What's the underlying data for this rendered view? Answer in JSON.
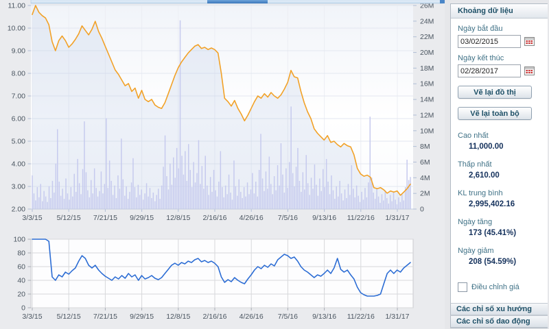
{
  "colors": {
    "price_line": "#f2a126",
    "price_area": "rgba(185,200,228,0.25)",
    "volume_bar": "#c6caee",
    "oscillator_line": "#2b6cd4",
    "grid_main": "#e3e7f0",
    "grid_osc": "#d7d8db",
    "axis_text": "#4a5560",
    "scrollbar_thumb": "#4a86c8",
    "accent_text": "#1d4f66"
  },
  "chart_data": [
    {
      "type": "line",
      "name": "price-volume-chart",
      "x_tick_labels": [
        "3/3/15",
        "5/12/15",
        "7/21/15",
        "9/29/15",
        "12/8/15",
        "2/16/16",
        "4/26/16",
        "7/5/16",
        "9/13/16",
        "11/22/16",
        "1/31/17"
      ],
      "left_axis": {
        "min": 2,
        "max": 11,
        "step": 1,
        "labels": [
          "11.00",
          "10.00",
          "9.00",
          "8.00",
          "7.00",
          "6.00",
          "5.00",
          "4.00",
          "3.00",
          "2.00"
        ]
      },
      "right_axis": {
        "min": 0,
        "max": 26,
        "step": 2,
        "unit": "M",
        "labels": [
          "26M",
          "24M",
          "22M",
          "20M",
          "18M",
          "16M",
          "14M",
          "12M",
          "10M",
          "8M",
          "6M",
          "4M",
          "2M",
          "0"
        ]
      },
      "series": [
        {
          "name": "price",
          "type": "line",
          "color": "#f2a126",
          "values": [
            10.6,
            11.0,
            10.7,
            10.55,
            10.45,
            10.15,
            9.4,
            9.0,
            9.45,
            9.65,
            9.45,
            9.15,
            9.3,
            9.5,
            9.75,
            10.1,
            9.9,
            9.7,
            9.95,
            10.3,
            9.85,
            9.55,
            9.2,
            8.85,
            8.5,
            8.15,
            7.95,
            7.7,
            7.45,
            7.55,
            7.2,
            7.35,
            6.9,
            7.25,
            6.85,
            6.75,
            6.85,
            6.6,
            6.5,
            6.45,
            6.7,
            7.1,
            7.5,
            7.9,
            8.25,
            8.5,
            8.7,
            8.9,
            9.05,
            9.2,
            9.27,
            9.1,
            9.15,
            9.05,
            9.12,
            9.05,
            8.9,
            8.0,
            6.9,
            6.75,
            6.55,
            6.8,
            6.45,
            6.2,
            5.9,
            6.15,
            6.45,
            6.75,
            7.0,
            6.9,
            7.1,
            6.95,
            7.15,
            7.0,
            6.9,
            7.05,
            7.3,
            7.6,
            8.13,
            7.85,
            7.8,
            7.2,
            6.7,
            6.3,
            6.0,
            5.55,
            5.35,
            5.2,
            5.05,
            5.25,
            4.95,
            5.0,
            4.85,
            4.75,
            4.9,
            4.8,
            4.75,
            4.4,
            3.8,
            3.55,
            3.45,
            3.5,
            3.4,
            2.95,
            2.9,
            2.95,
            2.85,
            2.7,
            2.8,
            2.75,
            2.8,
            2.61,
            2.75,
            2.9,
            3.1
          ]
        },
        {
          "name": "volume",
          "type": "bar",
          "unit": "millions",
          "color": "#c6caee",
          "values": [
            4.3,
            2.0,
            1.1,
            2.8,
            1.5,
            3.2,
            1.0,
            2.3,
            1.6,
            0.9,
            2.9,
            1.4,
            3.6,
            2.1,
            5.8,
            10.2,
            3.5,
            1.7,
            2.6,
            1.3,
            3.9,
            2.0,
            1.2,
            2.8,
            1.6,
            4.5,
            2.2,
            6.4,
            3.3,
            1.9,
            5.1,
            11.2,
            4.7,
            2.4,
            1.5,
            3.7,
            2.0,
            5.2,
            2.7,
            1.6,
            2.3,
            4.8,
            2.0,
            3.2,
            11.6,
            2.7,
            6.2,
            3.6,
            1.8,
            3.0,
            1.4,
            4.3,
            2.6,
            9.0,
            3.8,
            1.7,
            2.9,
            1.3,
            2.2,
            3.4,
            6.5,
            2.8,
            1.5,
            3.1,
            1.8,
            2.5,
            1.2,
            2.0,
            3.3,
            1.6,
            2.7,
            1.4,
            2.1,
            1.0,
            1.8,
            2.6,
            1.3,
            3.0,
            5.4,
            9.4,
            4.2,
            2.5,
            5.8,
            3.1,
            6.6,
            4.0,
            7.8,
            5.2,
            24.1,
            6.8,
            4.4,
            7.4,
            3.6,
            8.3,
            5.0,
            2.8,
            6.0,
            3.4,
            4.6,
            8.8,
            3.2,
            5.5,
            2.6,
            6.8,
            3.0,
            1.8,
            4.1,
            2.2,
            5.0,
            2.4,
            1.6,
            3.5,
            7.4,
            2.8,
            1.5,
            3.0,
            1.9,
            4.4,
            2.1,
            1.2,
            6.2,
            2.9,
            1.7,
            3.8,
            2.2,
            1.4,
            2.8,
            1.6,
            3.4,
            1.9,
            2.5,
            4.6,
            2.0,
            3.5,
            1.6,
            5.0,
            9.6,
            3.9,
            2.3,
            4.8,
            2.6,
            6.7,
            3.2,
            1.9,
            4.2,
            2.4,
            5.6,
            3.0,
            8.4,
            4.4,
            2.1,
            5.2,
            2.7,
            6.0,
            13.1,
            4.6,
            2.9,
            5.4,
            7.8,
            3.6,
            2.2,
            4.7,
            2.5,
            6.9,
            3.3,
            1.8,
            4.0,
            2.6,
            5.7,
            3.1,
            1.7,
            3.9,
            2.3,
            5.1,
            2.8,
            6.4,
            3.5,
            1.9,
            4.3,
            2.4,
            1.3,
            2.9,
            1.6,
            3.6,
            2.0,
            1.1,
            2.5,
            1.4,
            3.2,
            1.8,
            5.6,
            2.6,
            1.5,
            3.0,
            1.7,
            0.9,
            2.2,
            1.2,
            2.7,
            1.5,
            3.4,
            11.8,
            4.0,
            2.1,
            1.3,
            2.6,
            1.6,
            0.8,
            1.9,
            1.1,
            2.4,
            1.4,
            0.7,
            1.8,
            1.0,
            2.1,
            1.2,
            0.6,
            1.5,
            0.9,
            1.9,
            1.1,
            2.8,
            6.3,
            3.7,
            4.1
          ]
        }
      ]
    },
    {
      "type": "line",
      "name": "oscillator-chart",
      "x_tick_labels": [
        "3/3/15",
        "5/12/15",
        "7/21/15",
        "9/29/15",
        "12/8/15",
        "2/16/16",
        "4/26/16",
        "7/5/16",
        "9/13/16",
        "11/22/16",
        "1/31/17"
      ],
      "y_axis": {
        "min": 0,
        "max": 100,
        "step": 20,
        "labels": [
          "100",
          "80",
          "60",
          "40",
          "20",
          "0"
        ]
      },
      "series": [
        {
          "name": "oscillator",
          "type": "line",
          "color": "#2b6cd4",
          "values": [
            100,
            100,
            100,
            100,
            100,
            97,
            45,
            40,
            48,
            45,
            52,
            49,
            54,
            58,
            68,
            76,
            72,
            62,
            58,
            62,
            55,
            50,
            46,
            43,
            40,
            45,
            42,
            47,
            43,
            50,
            45,
            48,
            40,
            47,
            42,
            44,
            47,
            43,
            41,
            44,
            50,
            56,
            62,
            65,
            62,
            66,
            64,
            68,
            66,
            70,
            72,
            67,
            69,
            66,
            68,
            65,
            60,
            45,
            37,
            41,
            38,
            44,
            40,
            37,
            35,
            42,
            48,
            55,
            60,
            57,
            62,
            59,
            64,
            61,
            70,
            74,
            78,
            76,
            72,
            74,
            68,
            60,
            55,
            52,
            48,
            44,
            48,
            46,
            50,
            55,
            50,
            58,
            72,
            56,
            52,
            55,
            48,
            42,
            30,
            22,
            19,
            17,
            17,
            17,
            18,
            20,
            35,
            50,
            55,
            50,
            55,
            52,
            58,
            62,
            66
          ]
        }
      ]
    }
  ],
  "sidebar": {
    "header": "Khoảng dữ liệu",
    "start_date": {
      "label": "Ngày bắt đầu",
      "value": "03/02/2015"
    },
    "end_date": {
      "label": "Ngày kết thúc",
      "value": "02/28/2017"
    },
    "buttons": {
      "redraw": "Vẽ lại đồ thị",
      "redraw_all": "Vẽ lại toàn bộ"
    },
    "stats": [
      {
        "label": "Cao nhất",
        "value": "11,000.00"
      },
      {
        "label": "Thấp nhất",
        "value": "2,610.00"
      },
      {
        "label": "KL trung bình",
        "value": "2,995,402.16"
      },
      {
        "label": "Ngày tăng",
        "value": "173 (45.41%)"
      },
      {
        "label": "Ngày giảm",
        "value": "208 (54.59%)"
      }
    ],
    "checkbox": {
      "label": "Điều chỉnh giá",
      "checked": false
    },
    "accordions": [
      "Các chỉ số xu hướng",
      "Các chỉ số dao động"
    ]
  }
}
